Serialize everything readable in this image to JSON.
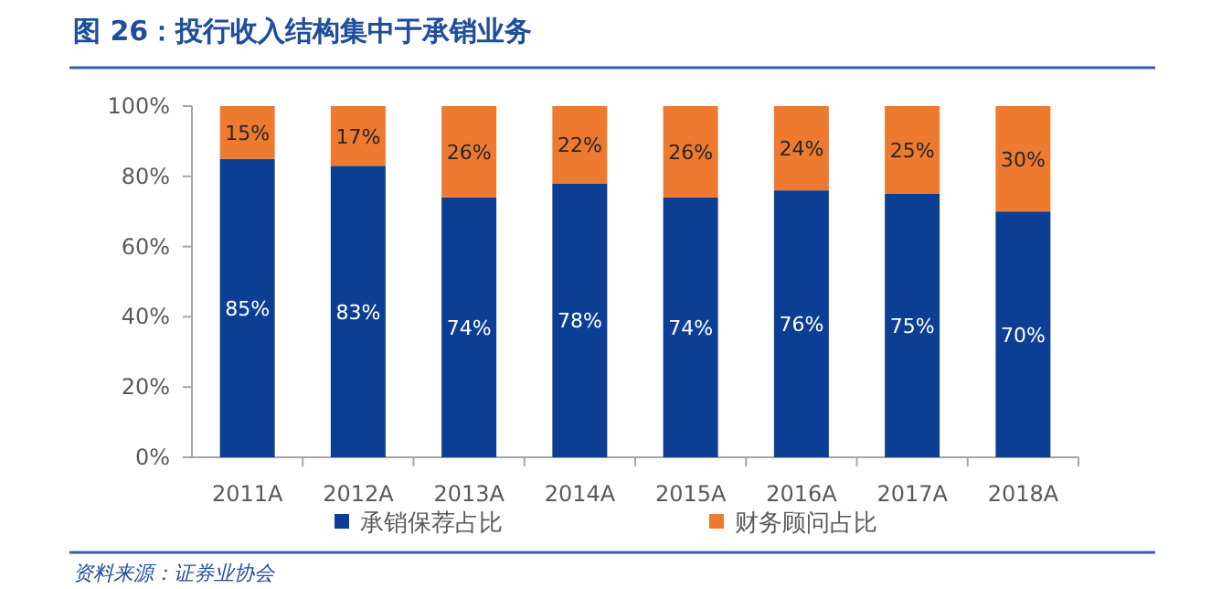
{
  "chart_data": {
    "type": "bar",
    "stacked": true,
    "title": "图 26：投行收入结构集中于承销业务",
    "categories": [
      "2011A",
      "2012A",
      "2013A",
      "2014A",
      "2015A",
      "2016A",
      "2017A",
      "2018A"
    ],
    "series": [
      {
        "name": "承销保荐占比",
        "color": "#0c3f94",
        "values": [
          85,
          83,
          74,
          78,
          74,
          76,
          75,
          70
        ]
      },
      {
        "name": "财务顾问占比",
        "color": "#ee7a30",
        "values": [
          15,
          17,
          26,
          22,
          26,
          24,
          25,
          30
        ]
      }
    ],
    "ylim": [
      0,
      100
    ],
    "yticks": [
      {
        "value": 0,
        "label": "0%"
      },
      {
        "value": 20,
        "label": "20%"
      },
      {
        "value": 40,
        "label": "40%"
      },
      {
        "value": 60,
        "label": "60%"
      },
      {
        "value": 80,
        "label": "80%"
      },
      {
        "value": 100,
        "label": "100%"
      }
    ],
    "value_labels": [
      [
        "85%",
        "83%",
        "74%",
        "78%",
        "74%",
        "76%",
        "75%",
        "70%"
      ],
      [
        "15%",
        "17%",
        "26%",
        "22%",
        "26%",
        "24%",
        "25%",
        "30%"
      ]
    ],
    "legend": "bottom",
    "annotations": [
      "资料来源：证券业协会"
    ]
  }
}
